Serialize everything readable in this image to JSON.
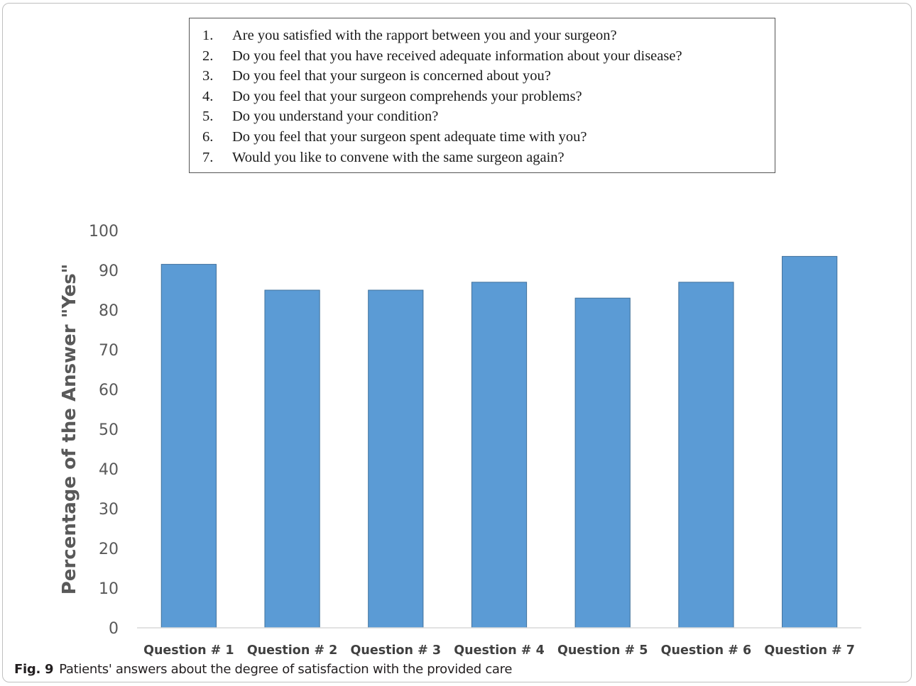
{
  "questions": [
    {
      "num": "1.",
      "text": "Are you satisfied with the rapport between you and your surgeon?"
    },
    {
      "num": "2.",
      "text": "Do you feel that you have received adequate information about your disease?"
    },
    {
      "num": "3.",
      "text": "Do you feel that your surgeon is concerned about you?"
    },
    {
      "num": "4.",
      "text": "Do you feel that your surgeon comprehends your problems?"
    },
    {
      "num": "5.",
      "text": "Do you understand your condition?"
    },
    {
      "num": "6.",
      "text": "Do you feel that your surgeon spent adequate time with you?"
    },
    {
      "num": "7.",
      "text": "Would you like to convene with the same surgeon again?"
    }
  ],
  "caption": {
    "label": "Fig. 9",
    "text": "Patients' answers about the degree of satisfaction with the provided care"
  },
  "chart_data": {
    "type": "bar",
    "title": "",
    "xlabel": "",
    "ylabel": "Percentage of the Answer \"Yes\"",
    "categories": [
      "Question # 1",
      "Question # 2",
      "Question # 3",
      "Question # 4",
      "Question # 5",
      "Question # 6",
      "Question # 7"
    ],
    "values": [
      91.5,
      85,
      85,
      87,
      83,
      87,
      93.5
    ],
    "ylim": [
      0,
      100
    ],
    "yticks": [
      0,
      10,
      20,
      30,
      40,
      50,
      60,
      70,
      80,
      90,
      100
    ],
    "grid": false,
    "legend": "none",
    "bar_color": "#5b9bd5",
    "bar_edge_color": "#41719c"
  }
}
